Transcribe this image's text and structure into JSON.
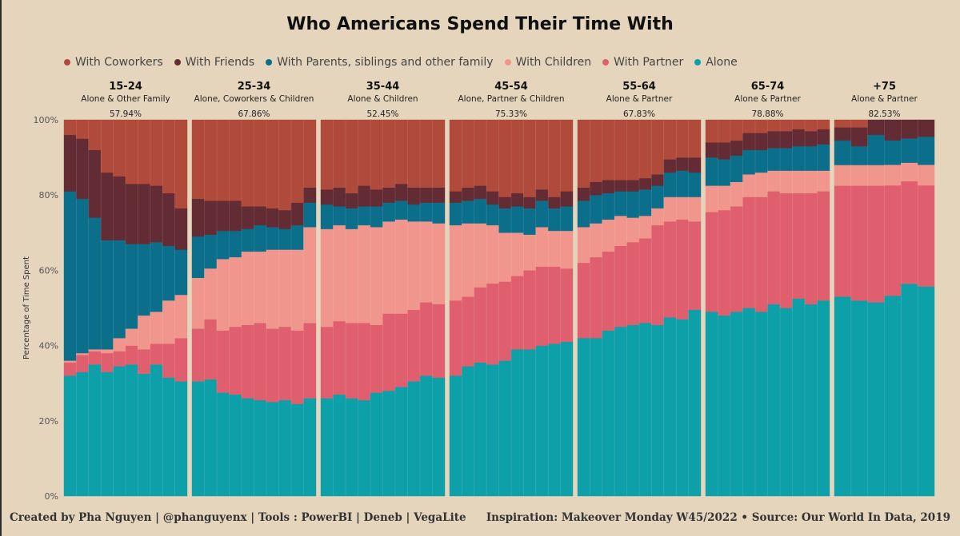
{
  "title": "Who Americans Spend Their Time With",
  "footer": {
    "left": "Created by Pha Nguyen  | @phanguyenx | Tools : PowerBI | Deneb | VegaLite",
    "right": "Inspiration: Makeover Monday W45/2022 •  Source: Our World In Data, 2019"
  },
  "colors": {
    "With Coworkers": "#b04a3a",
    "With Friends": "#632c34",
    "With Parents, siblings and other family": "#0b6e8a",
    "With Children": "#f0968c",
    "With Partner": "#e05f6e",
    "Alone": "#0ea0a8"
  },
  "chart_data": {
    "type": "bar",
    "stacked": "normalized",
    "title": "Who Americans Spend Their Time With",
    "ylabel": "Percentage of Time Spent",
    "ylim": [
      0,
      100
    ],
    "yticks": [
      "0%",
      "20%",
      "40%",
      "60%",
      "80%",
      "100%"
    ],
    "legend": [
      "With Coworkers",
      "With Friends",
      "With Parents, siblings and other family",
      "With Children",
      "With Partner",
      "Alone"
    ],
    "stack_order": [
      "Alone",
      "With Partner",
      "With Children",
      "With Parents, siblings and other family",
      "With Friends",
      "With Coworkers"
    ],
    "groups": [
      {
        "age": "15-24",
        "subtitle": "Alone & Other Family",
        "pct": "57.94%",
        "bars": {
          "Alone": [
            32,
            33,
            35,
            33,
            34.5,
            35,
            32.5,
            35,
            31.5,
            30.5
          ],
          "With Partner": [
            3.5,
            4.5,
            3.5,
            5,
            4,
            5,
            6.5,
            5.5,
            9,
            11.5
          ],
          "With Children": [
            0.5,
            0.5,
            0.5,
            1,
            3.5,
            4.5,
            9,
            8.5,
            11.5,
            11.5
          ],
          "With Parents, siblings and other family": [
            45,
            41,
            35,
            29,
            26,
            22.5,
            19,
            18.5,
            14.5,
            12
          ],
          "With Friends": [
            15,
            16,
            18,
            18,
            17,
            16,
            16,
            15,
            14,
            11
          ],
          "With Coworkers": [
            4,
            5,
            8,
            14,
            15,
            17,
            17,
            17.5,
            19.5,
            23.5
          ]
        }
      },
      {
        "age": "25-34",
        "subtitle": "Alone, Coworkers & Children",
        "pct": "67.86%",
        "bars": {
          "Alone": [
            30.5,
            31,
            27.5,
            27,
            26,
            25.5,
            25,
            25.5,
            24.5,
            26
          ],
          "With Partner": [
            14,
            16,
            16.5,
            18,
            19.5,
            20.5,
            19.5,
            19.5,
            19.5,
            20
          ],
          "With Children": [
            13.5,
            13.5,
            19,
            18.5,
            19.5,
            19,
            21,
            20.5,
            21.5,
            25.5
          ],
          "With Parents, siblings and other family": [
            11,
            9,
            7.5,
            7,
            6,
            7,
            6,
            5.5,
            6.5,
            6.5
          ],
          "With Friends": [
            10,
            9,
            8,
            8,
            6,
            5,
            5,
            5,
            6,
            4
          ],
          "With Coworkers": [
            21,
            21.5,
            21.5,
            21.5,
            23,
            23,
            23.5,
            24,
            22,
            18
          ]
        }
      },
      {
        "age": "35-44",
        "subtitle": "Alone & Children",
        "pct": "52.45%",
        "bars": {
          "Alone": [
            26,
            27,
            26,
            25.5,
            27.5,
            28,
            29,
            30.5,
            32,
            31.5
          ],
          "With Partner": [
            19,
            19.5,
            20,
            20.5,
            18,
            20.5,
            19.5,
            19,
            19.5,
            19.5
          ],
          "With Children": [
            26,
            25.5,
            25,
            26,
            26,
            24.5,
            25,
            23.5,
            21.5,
            21.5
          ],
          "With Parents, siblings and other family": [
            6.5,
            5,
            5.5,
            5,
            5.5,
            5,
            5,
            4.5,
            5,
            5.5
          ],
          "With Friends": [
            4,
            5,
            4,
            5.5,
            4.5,
            4,
            4.5,
            4.5,
            4,
            4
          ],
          "With Coworkers": [
            18.5,
            18,
            19.5,
            17.5,
            18.5,
            18,
            17,
            18,
            18,
            18
          ]
        }
      },
      {
        "age": "45-54",
        "subtitle": "Alone, Partner & Children",
        "pct": "75.33%",
        "bars": {
          "Alone": [
            32,
            34.5,
            35.5,
            35,
            36,
            39,
            39,
            40,
            40.5,
            41
          ],
          "With Partner": [
            20,
            18.5,
            20,
            21.5,
            21,
            19.5,
            21,
            21,
            20.5,
            19.5
          ],
          "With Children": [
            20,
            19.5,
            17,
            15.5,
            13,
            11.5,
            9.5,
            10.5,
            9.5,
            10
          ],
          "With Parents, siblings and other family": [
            6,
            6,
            6.5,
            5.5,
            6.5,
            7,
            7,
            7,
            6,
            6.5
          ],
          "With Friends": [
            3,
            3.5,
            3.5,
            3.5,
            3,
            3.5,
            3,
            3,
            3,
            4
          ],
          "With Coworkers": [
            19,
            18,
            17.5,
            19,
            20.5,
            19.5,
            20.5,
            18.5,
            20.5,
            19
          ]
        }
      },
      {
        "age": "55-64",
        "subtitle": "Alone & Partner",
        "pct": "67.83%",
        "bars": {
          "Alone": [
            42,
            42,
            44,
            45,
            45.5,
            46,
            45.5,
            47.5,
            47,
            49.5
          ],
          "With Partner": [
            20,
            21.5,
            21,
            21.5,
            22,
            22.5,
            26.5,
            25.5,
            26.5,
            23.5
          ],
          "With Children": [
            9.5,
            9,
            8.5,
            8,
            6.5,
            6,
            4.5,
            6.5,
            6,
            6.5
          ],
          "With Parents, siblings and other family": [
            7,
            7.5,
            7,
            6.5,
            7,
            7,
            6,
            6.5,
            7,
            6.5
          ],
          "With Friends": [
            3.5,
            3.5,
            3.5,
            3,
            3,
            3,
            3,
            3.5,
            3.5,
            4
          ],
          "With Coworkers": [
            18,
            16.5,
            16,
            16,
            16,
            15.5,
            14.5,
            10.5,
            10,
            10
          ]
        }
      },
      {
        "age": "65-74",
        "subtitle": "Alone & Partner",
        "pct": "78.88%",
        "bars": {
          "Alone": [
            49,
            48,
            49,
            50,
            49,
            51,
            50,
            52.5,
            51,
            52
          ],
          "With Partner": [
            26.5,
            28,
            28,
            29.5,
            30.5,
            30,
            30.5,
            28,
            29.5,
            29
          ],
          "With Children": [
            7,
            6.5,
            6.5,
            6,
            6.5,
            5.5,
            6,
            6,
            6,
            5.5
          ],
          "With Parents, siblings and other family": [
            7.5,
            7,
            7,
            6.5,
            6,
            6,
            6,
            6.5,
            6.5,
            7
          ],
          "With Friends": [
            4,
            4.5,
            4,
            4.5,
            4.5,
            4.5,
            4.5,
            4.5,
            4,
            4
          ],
          "With Coworkers": [
            6,
            6,
            5.5,
            3.5,
            3.5,
            3,
            3,
            2.5,
            3,
            2.5
          ]
        }
      },
      {
        "age": "+75",
        "subtitle": "Alone & Partner",
        "pct": "82.53%",
        "bars": {
          "Alone": [
            53,
            52,
            51.5,
            53.5,
            57,
            56
          ],
          "With Partner": [
            29.5,
            30.5,
            31,
            29.5,
            27.5,
            27
          ],
          "With Children": [
            5.5,
            5.5,
            5.5,
            5.5,
            5,
            5.5
          ],
          "With Parents, siblings and other family": [
            6.5,
            5,
            8,
            6.5,
            6.5,
            7.5
          ],
          "With Friends": [
            3.5,
            5,
            4,
            5.5,
            5,
            4.5
          ],
          "With Coworkers": [
            2,
            2,
            0,
            0,
            0,
            0
          ]
        }
      }
    ]
  }
}
